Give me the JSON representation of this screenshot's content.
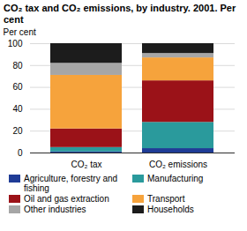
{
  "chart_data": {
    "type": "bar",
    "title": "CO₂ tax and CO₂ emissions, by industry. 2001. Per cent",
    "y_label": "Per cent",
    "categories": [
      "CO₂ tax",
      "CO₂ emissions"
    ],
    "stacked": true,
    "grid": true,
    "legend": "bottom",
    "ylim": [
      0,
      100
    ],
    "yticks": [
      0,
      20,
      40,
      60,
      80,
      100
    ],
    "series": [
      {
        "name": "Agriculture, forestry and fishing",
        "color": "#1f3c96",
        "values": [
          1,
          4
        ]
      },
      {
        "name": "Manufacturing",
        "color": "#2a9a9c",
        "values": [
          4,
          24
        ]
      },
      {
        "name": "Oil and gas extraction",
        "color": "#9b1218",
        "values": [
          17,
          38
        ]
      },
      {
        "name": "Transport",
        "color": "#f6a33c",
        "values": [
          49,
          21
        ]
      },
      {
        "name": "Other industries",
        "color": "#a6a6a6",
        "values": [
          11,
          4
        ]
      },
      {
        "name": "Households",
        "color": "#1c1c1c",
        "values": [
          18,
          9
        ]
      }
    ]
  }
}
